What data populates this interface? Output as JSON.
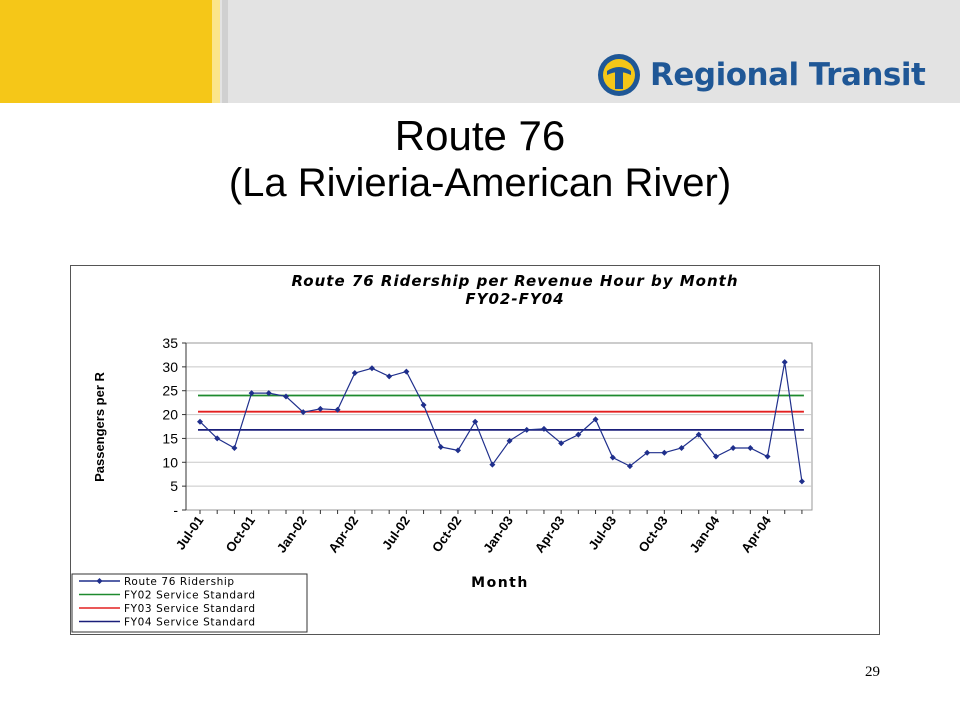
{
  "header": {
    "logo_text": "Regional Transit"
  },
  "slide": {
    "title_line1": "Route 76",
    "title_line2": "(La Rivieria-American River)",
    "page_number": "29"
  },
  "chart_data": {
    "type": "line",
    "title": "Route 76 Ridership per Revenue Hour by Month",
    "subtitle": "FY02-FY04",
    "xlabel": "Month",
    "ylabel": "Passengers per R",
    "ylim": [
      0,
      35
    ],
    "y_ticks": [
      "-",
      "5",
      "10",
      "15",
      "20",
      "25",
      "30",
      "35"
    ],
    "y_tick_values": [
      0,
      5,
      10,
      15,
      20,
      25,
      30,
      35
    ],
    "grid": true,
    "legend_position": "bottom-left",
    "x_tick_labels": [
      "Jul-01",
      "Oct-01",
      "Jan-02",
      "Apr-02",
      "Jul-02",
      "Oct-02",
      "Jan-03",
      "Apr-03",
      "Jul-03",
      "Oct-03",
      "Jan-04",
      "Apr-04"
    ],
    "x_tick_label_every": 3,
    "series": [
      {
        "name": "Route 76 Ridership",
        "style": "line-markers",
        "color": "#1f2f8c",
        "values": [
          18.5,
          15,
          13,
          24.5,
          24.5,
          23.8,
          20.5,
          21.2,
          21,
          28.7,
          29.7,
          28,
          29,
          22,
          13.2,
          12.5,
          18.5,
          9.5,
          14.5,
          16.8,
          17,
          14,
          15.8,
          19,
          11,
          9.2,
          12,
          12,
          13,
          15.8,
          11.2,
          13,
          13,
          11.2,
          31,
          6
        ]
      },
      {
        "name": "FY02 Service Standard",
        "style": "line",
        "color": "#1e8a2e",
        "values": [
          24,
          24
        ]
      },
      {
        "name": "FY03 Service Standard",
        "style": "line",
        "color": "#e32020",
        "values": [
          20.6,
          20.6
        ]
      },
      {
        "name": "FY04 Service Standard",
        "style": "line",
        "color": "#1a1f7a",
        "values": [
          16.8,
          16.8
        ]
      }
    ]
  }
}
